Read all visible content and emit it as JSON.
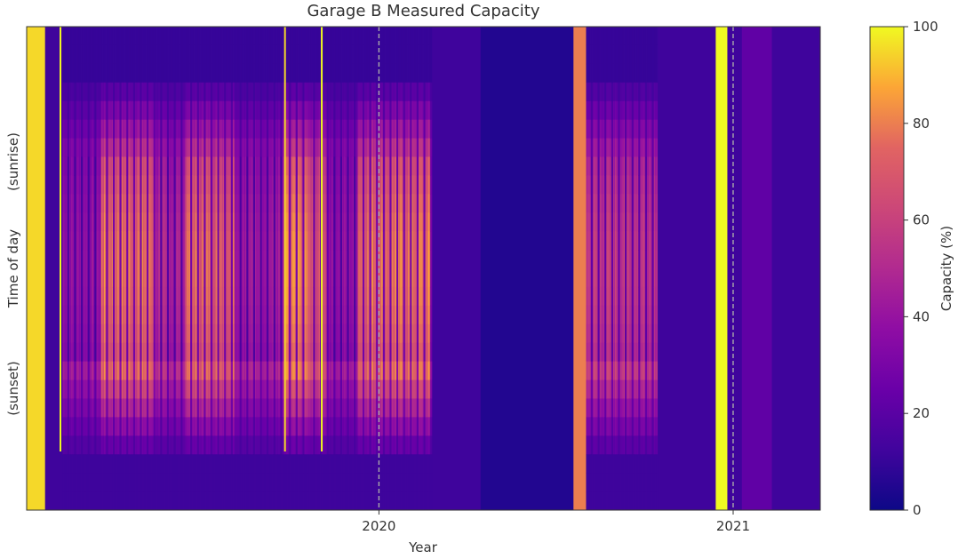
{
  "chart_data": {
    "type": "heatmap",
    "title": "Garage B Measured Capacity",
    "xlabel": "Year",
    "ylabel": "Time of day",
    "y_annotations": [
      "(sunrise)",
      "(sunset)"
    ],
    "x_ticks": [
      {
        "label": "2020",
        "date": "2020-01-01"
      },
      {
        "label": "2021",
        "date": "2021-01-01"
      }
    ],
    "x_range": [
      "2019-01-02",
      "2021-04-01"
    ],
    "colorbar": {
      "label": "Capacity (%)",
      "min": 0,
      "max": 100,
      "ticks": [
        0,
        20,
        40,
        60,
        80,
        100
      ],
      "colormap": "plasma"
    },
    "reference_lines": [
      {
        "date": "2020-01-01",
        "style": "dashed"
      },
      {
        "date": "2021-01-01",
        "style": "dashed"
      }
    ],
    "segments": [
      {
        "start": "2019-01-02",
        "end": "2019-01-21",
        "pattern": "full",
        "peak": 95
      },
      {
        "start": "2019-01-21",
        "end": "2019-02-08",
        "pattern": "flat",
        "peak": 12
      },
      {
        "start": "2019-02-08",
        "end": "2019-03-20",
        "pattern": "diurnal",
        "peak": 45
      },
      {
        "start": "2019-03-20",
        "end": "2019-05-15",
        "pattern": "diurnal",
        "peak": 88
      },
      {
        "start": "2019-05-15",
        "end": "2019-06-15",
        "pattern": "diurnal",
        "peak": 55
      },
      {
        "start": "2019-06-15",
        "end": "2019-08-05",
        "pattern": "diurnal",
        "peak": 85
      },
      {
        "start": "2019-08-05",
        "end": "2019-09-25",
        "pattern": "diurnal",
        "peak": 50
      },
      {
        "start": "2019-09-25",
        "end": "2019-10-20",
        "pattern": "diurnal",
        "peak": 90
      },
      {
        "start": "2019-10-20",
        "end": "2019-11-10",
        "pattern": "diurnal",
        "peak": 75
      },
      {
        "start": "2019-11-10",
        "end": "2019-12-10",
        "pattern": "diurnal",
        "peak": 45
      },
      {
        "start": "2019-12-10",
        "end": "2020-02-25",
        "pattern": "diurnal",
        "peak": 88
      },
      {
        "start": "2020-02-25",
        "end": "2020-04-15",
        "pattern": "flat",
        "peak": 12
      },
      {
        "start": "2020-04-15",
        "end": "2020-07-20",
        "pattern": "flat",
        "peak": 5
      },
      {
        "start": "2020-07-20",
        "end": "2020-08-02",
        "pattern": "full",
        "peak": 80
      },
      {
        "start": "2020-08-02",
        "end": "2020-10-15",
        "pattern": "diurnal",
        "peak": 65
      },
      {
        "start": "2020-10-15",
        "end": "2020-12-14",
        "pattern": "flat",
        "peak": 12
      },
      {
        "start": "2020-12-14",
        "end": "2020-12-26",
        "pattern": "full",
        "peak": 100
      },
      {
        "start": "2020-12-26",
        "end": "2021-01-10",
        "pattern": "flat",
        "peak": 12
      },
      {
        "start": "2021-01-10",
        "end": "2021-02-10",
        "pattern": "flat",
        "peak": 22
      },
      {
        "start": "2021-02-10",
        "end": "2021-04-01",
        "pattern": "flat",
        "peak": 12
      }
    ],
    "spikes": [
      {
        "date": "2019-02-05",
        "value": 100
      },
      {
        "date": "2019-09-25",
        "value": 95
      },
      {
        "date": "2019-11-02",
        "value": 100
      }
    ]
  }
}
